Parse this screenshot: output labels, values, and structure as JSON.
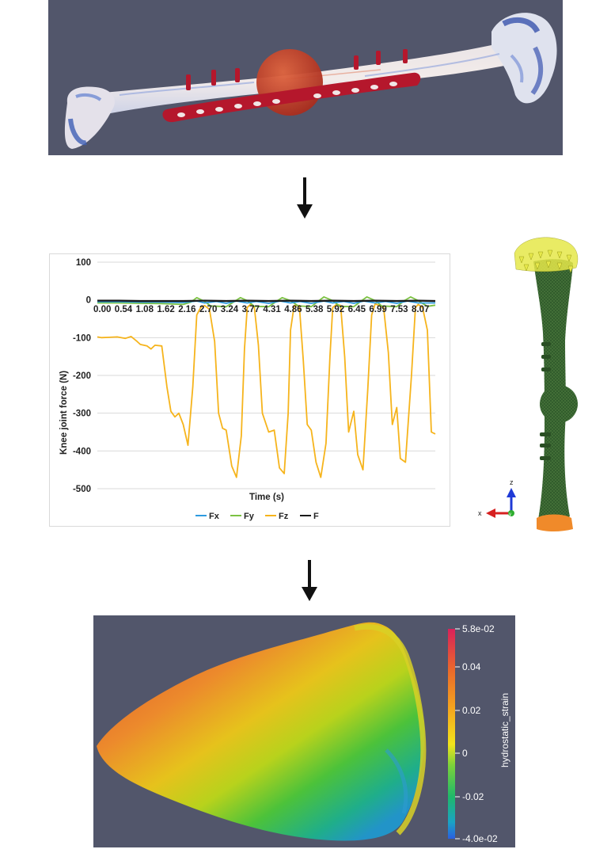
{
  "chart_data": {
    "type": "line",
    "title": "",
    "xlabel": "Time (s)",
    "ylabel": "Knee joint force (N)",
    "ylim": [
      -500,
      100
    ],
    "yticks": [
      100,
      0,
      -100,
      -200,
      -300,
      -400,
      -500
    ],
    "x_tick_labels": [
      "0.00",
      "0.54",
      "1.08",
      "1.62",
      "2.16",
      "2.70",
      "3.24",
      "3.77",
      "4.31",
      "4.86",
      "5.38",
      "5.92",
      "6.45",
      "6.99",
      "7.53",
      "8.07"
    ],
    "grid": true,
    "legend_position": "bottom",
    "series": [
      {
        "name": "Fx",
        "color": "#2e9be0",
        "x": [
          0,
          0.54,
          1.08,
          1.62,
          2.16,
          2.5,
          2.7,
          3.0,
          3.24,
          3.5,
          3.77,
          4.0,
          4.31,
          4.6,
          4.86,
          5.1,
          5.38,
          5.7,
          5.92,
          6.2,
          6.45,
          6.7,
          6.99,
          7.25,
          7.53,
          7.8,
          8.07,
          8.5
        ],
        "y": [
          -5,
          -5,
          -6,
          -6,
          -7,
          -3,
          -8,
          -4,
          -9,
          -3,
          -8,
          -4,
          -9,
          -3,
          -8,
          -4,
          -9,
          -3,
          -8,
          -4,
          -9,
          -3,
          -8,
          -4,
          -9,
          -3,
          -8,
          -8
        ]
      },
      {
        "name": "Fy",
        "color": "#7cc243",
        "x": [
          0,
          0.54,
          1.08,
          1.62,
          2.16,
          2.35,
          2.5,
          2.7,
          2.85,
          3.24,
          3.45,
          3.6,
          3.77,
          3.95,
          4.31,
          4.5,
          4.65,
          4.86,
          5.05,
          5.38,
          5.55,
          5.7,
          5.92,
          6.1,
          6.45,
          6.62,
          6.78,
          6.99,
          7.15,
          7.53,
          7.72,
          7.88,
          8.07,
          8.3,
          8.5
        ],
        "y": [
          -8,
          -8,
          -9,
          -10,
          -12,
          -6,
          6,
          -4,
          -16,
          -18,
          -4,
          6,
          -2,
          -17,
          -18,
          -4,
          6,
          -2,
          -16,
          -18,
          -4,
          8,
          -2,
          -17,
          -18,
          -4,
          8,
          -2,
          -16,
          -18,
          -2,
          8,
          -2,
          -17,
          -14
        ]
      },
      {
        "name": "Fz",
        "color": "#f6b41c",
        "x": [
          0,
          0.1,
          0.3,
          0.5,
          0.7,
          0.85,
          1.0,
          1.08,
          1.25,
          1.35,
          1.45,
          1.62,
          1.75,
          1.85,
          1.95,
          2.05,
          2.16,
          2.28,
          2.4,
          2.5,
          2.6,
          2.7,
          2.82,
          2.95,
          3.05,
          3.15,
          3.24,
          3.38,
          3.5,
          3.62,
          3.7,
          3.77,
          3.85,
          3.95,
          4.05,
          4.15,
          4.31,
          4.45,
          4.58,
          4.7,
          4.8,
          4.86,
          4.95,
          5.08,
          5.18,
          5.28,
          5.38,
          5.5,
          5.62,
          5.75,
          5.85,
          5.92,
          6.02,
          6.12,
          6.22,
          6.32,
          6.45,
          6.55,
          6.68,
          6.8,
          6.9,
          6.99,
          7.08,
          7.2,
          7.32,
          7.42,
          7.53,
          7.62,
          7.75,
          7.9,
          8.0,
          8.07,
          8.18,
          8.3,
          8.4,
          8.5
        ],
        "y": [
          -98,
          -100,
          -99,
          -98,
          -102,
          -97,
          -110,
          -118,
          -122,
          -130,
          -120,
          -122,
          -230,
          -295,
          -310,
          -300,
          -330,
          -385,
          -230,
          -40,
          -20,
          -15,
          -25,
          -110,
          -300,
          -340,
          -345,
          -440,
          -470,
          -360,
          -130,
          -20,
          -12,
          -20,
          -120,
          -300,
          -350,
          -345,
          -445,
          -460,
          -300,
          -80,
          -15,
          -15,
          -160,
          -330,
          -345,
          -430,
          -470,
          -380,
          -150,
          -20,
          -12,
          -15,
          -150,
          -350,
          -295,
          -410,
          -450,
          -240,
          -40,
          -10,
          -15,
          -20,
          -140,
          -330,
          -285,
          -420,
          -430,
          -200,
          -20,
          -12,
          -20,
          -80,
          -350,
          -355
        ]
      },
      {
        "name": "F",
        "color": "#1a1a1a",
        "x": [
          0,
          0.54,
          1.08,
          1.62,
          2.16,
          2.7,
          3.24,
          3.77,
          4.31,
          4.86,
          5.38,
          5.92,
          6.45,
          6.99,
          7.53,
          8.07,
          8.5
        ],
        "y": [
          -2,
          -2,
          -3,
          -3,
          -3,
          -2,
          -3,
          -2,
          -3,
          -2,
          -3,
          -2,
          -3,
          -2,
          -3,
          -2,
          -3
        ]
      }
    ]
  },
  "mesh_axes": {
    "z": "z",
    "x": "x",
    "y": "y"
  },
  "colorbar": {
    "title": "hydrostatic_strain",
    "ticks": [
      "5.8e-02",
      "0.04",
      "0.02",
      "0",
      "-0.02",
      "-4.0e-02"
    ],
    "min": -0.04,
    "max": 0.058
  },
  "colors": {
    "viewport_bg": "#52566b",
    "plate": "#b5172c",
    "mesh_green": "#2f5a2a",
    "load_yellow": "#e6e84a",
    "fixed_orange": "#f08a2a"
  }
}
